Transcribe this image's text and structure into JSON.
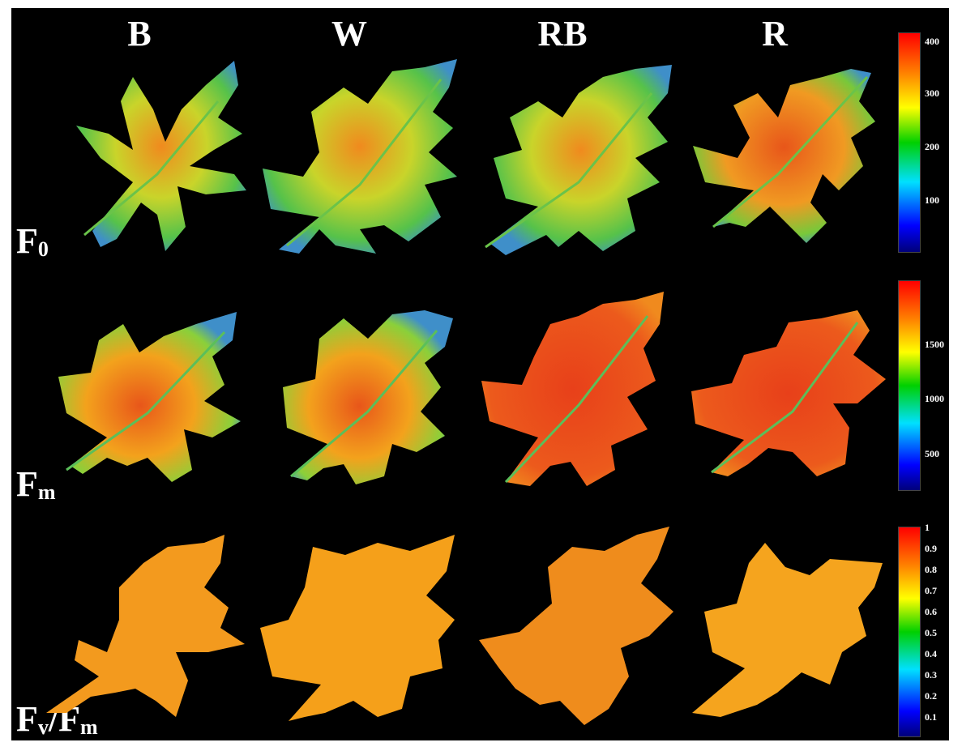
{
  "columns": [
    "B",
    "W",
    "RB",
    "R"
  ],
  "rows": [
    {
      "symbol": "F",
      "sub": "0"
    },
    {
      "symbol": "F",
      "sub": "m"
    },
    {
      "symbol": "F",
      "sub": "v",
      "suffix": "/F",
      "suffix_sub": "m"
    }
  ],
  "colorbars": [
    {
      "ticks": [
        "400",
        "300",
        "200",
        "100"
      ]
    },
    {
      "ticks": [
        "1500",
        "1000",
        "500"
      ]
    },
    {
      "ticks": [
        "1",
        "0.9",
        "0.8",
        "0.7",
        "0.6",
        "0.5",
        "0.4",
        "0.3",
        "0.2",
        "0.1"
      ]
    }
  ],
  "colors": {
    "background": "#000000",
    "leaf_high": "#e8561a",
    "leaf_mid": "#f6a21c",
    "leaf_low": "#5ec83a",
    "leaf_edge": "#3f8fc9",
    "fvfm_leaf": "#f59a1c"
  }
}
